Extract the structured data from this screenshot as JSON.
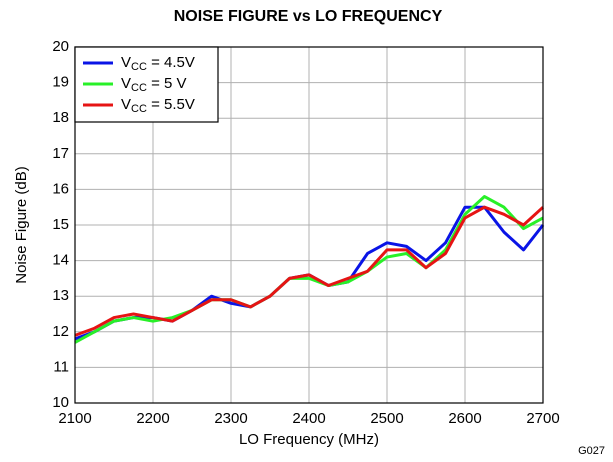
{
  "chart_data": {
    "type": "line",
    "title": "NOISE FIGURE vs LO FREQUENCY",
    "x_label": "LO Frequency (MHz)",
    "y_label": "Noise Figure (dB)",
    "figure_id": "G027",
    "x": [
      2100,
      2125,
      2150,
      2175,
      2200,
      2225,
      2250,
      2275,
      2300,
      2325,
      2350,
      2375,
      2400,
      2425,
      2450,
      2475,
      2500,
      2525,
      2550,
      2575,
      2600,
      2625,
      2650,
      2675,
      2700
    ],
    "series": [
      {
        "name": "VCC = 4.5V",
        "color": "#0a14e6",
        "values": [
          11.8,
          12.0,
          12.3,
          12.4,
          12.4,
          12.3,
          12.6,
          13.0,
          12.8,
          12.7,
          13.0,
          13.5,
          13.6,
          13.3,
          13.4,
          14.2,
          14.5,
          14.4,
          14.0,
          14.5,
          15.5,
          15.5,
          14.8,
          14.3,
          15.0
        ]
      },
      {
        "name": "VCC = 5 V",
        "color": "#28f028",
        "values": [
          11.7,
          12.0,
          12.3,
          12.4,
          12.3,
          12.4,
          12.6,
          12.9,
          12.9,
          12.7,
          13.0,
          13.5,
          13.5,
          13.3,
          13.4,
          13.7,
          14.1,
          14.2,
          13.8,
          14.3,
          15.3,
          15.8,
          15.5,
          14.9,
          15.2
        ]
      },
      {
        "name": "VCC = 5.5V",
        "color": "#e61414",
        "values": [
          11.9,
          12.1,
          12.4,
          12.5,
          12.4,
          12.3,
          12.6,
          12.9,
          12.9,
          12.7,
          13.0,
          13.5,
          13.6,
          13.3,
          13.5,
          13.7,
          14.3,
          14.3,
          13.8,
          14.2,
          15.2,
          15.5,
          15.3,
          15.0,
          15.5
        ]
      }
    ],
    "xlim": [
      2100,
      2700
    ],
    "xticks": [
      2100,
      2200,
      2300,
      2400,
      2500,
      2600,
      2700
    ],
    "ylim": [
      10,
      20
    ],
    "yticks": [
      10,
      11,
      12,
      13,
      14,
      15,
      16,
      17,
      18,
      19,
      20
    ],
    "grid": true,
    "legend": "top-left"
  }
}
